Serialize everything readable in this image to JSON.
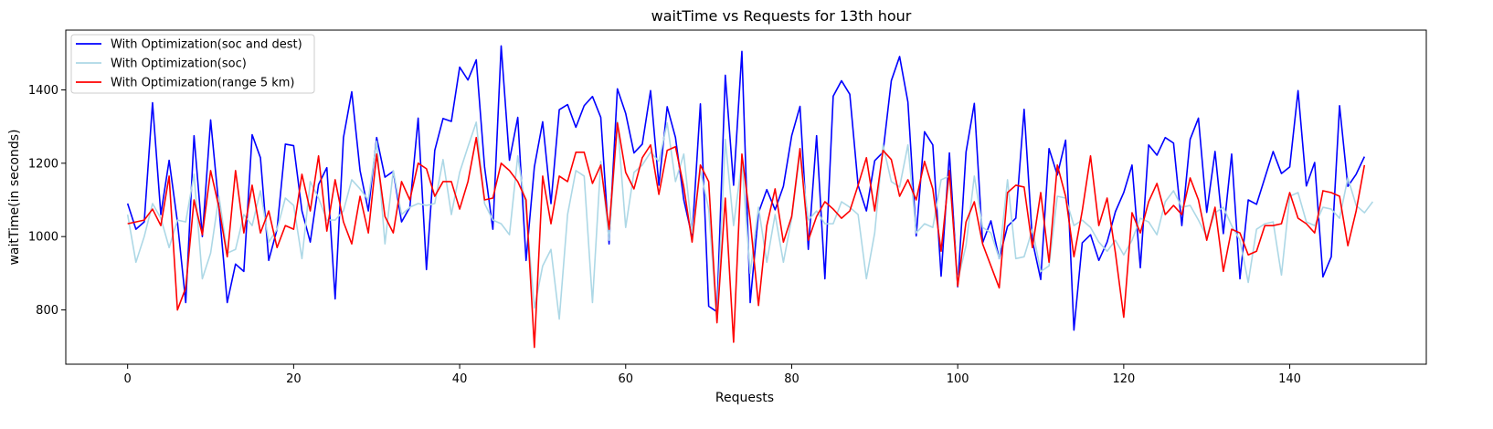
{
  "chart_data": {
    "type": "line",
    "title": "waitTime vs Requests for 13th hour",
    "xlabel": "Requests",
    "ylabel": "waitTime(in seconds)",
    "xlim": [
      -7.45,
      156.45
    ],
    "ylim": [
      652,
      1563
    ],
    "xticks": [
      0,
      20,
      40,
      60,
      80,
      100,
      120,
      140
    ],
    "yticks": [
      800,
      1000,
      1200,
      1400
    ],
    "grid": false,
    "legend_position": "top-left",
    "series": [
      {
        "name": "With Optimization(soc and dest)",
        "color": "#0000ff",
        "values": [
          1090,
          1020,
          1040,
          1365,
          1060,
          1208,
          1040,
          820,
          1275,
          1000,
          1318,
          1080,
          820,
          925,
          905,
          1278,
          1215,
          935,
          1020,
          1252,
          1248,
          1070,
          985,
          1142,
          1188,
          830,
          1270,
          1395,
          1180,
          1070,
          1270,
          1162,
          1178,
          1040,
          1080,
          1323,
          910,
          1235,
          1322,
          1314,
          1462,
          1427,
          1482,
          1190,
          1020,
          1520,
          1208,
          1325,
          935,
          1190,
          1313,
          1090,
          1346,
          1360,
          1298,
          1357,
          1382,
          1325,
          980,
          1403,
          1336,
          1228,
          1252,
          1398,
          1140,
          1354,
          1270,
          1100,
          1000,
          1362,
          810,
          795,
          1440,
          1140,
          1505,
          820,
          1065,
          1128,
          1073,
          1137,
          1275,
          1355,
          965,
          1275,
          885,
          1383,
          1425,
          1388,
          1140,
          1070,
          1207,
          1230,
          1425,
          1491,
          1367,
          1002,
          1286,
          1250,
          892,
          1228,
          863,
          1230,
          1363,
          983,
          1043,
          940,
          1028,
          1050,
          1347,
          988,
          883,
          1240,
          1168,
          1263,
          745,
          983,
          1005,
          935,
          985,
          1068,
          1120,
          1195,
          915,
          1250,
          1222,
          1270,
          1255,
          1030,
          1265,
          1323,
          1066,
          1232,
          1008,
          1225,
          885,
          1100,
          1088,
          1160,
          1232,
          1172,
          1190,
          1398,
          1138,
          1202,
          890,
          945,
          1357,
          1137,
          1170,
          1218
        ]
      },
      {
        "name": "With Optimization(soc)",
        "color": "#add8e6",
        "values": [
          1060,
          930,
          1000,
          1090,
          1050,
          970,
          1045,
          1040,
          1170,
          885,
          955,
          1110,
          955,
          965,
          1060,
          1030,
          1125,
          985,
          1020,
          1105,
          1085,
          940,
          1150,
          1105,
          1045,
          1045,
          1070,
          1155,
          1130,
          1100,
          1260,
          980,
          1180,
          1060,
          1080,
          1090,
          1085,
          1090,
          1210,
          1060,
          1175,
          1245,
          1312,
          1090,
          1045,
          1035,
          1005,
          1220,
          1070,
          805,
          920,
          965,
          775,
          1060,
          1180,
          1165,
          820,
          1205,
          990,
          1315,
          1025,
          1175,
          1195,
          1230,
          1205,
          1310,
          1150,
          1225,
          1010,
          1180,
          1075,
          770,
          1265,
          1030,
          1205,
          900,
          1080,
          930,
          1060,
          930,
          1050,
          1230,
          1045,
          1070,
          1035,
          1035,
          1095,
          1080,
          1060,
          885,
          1010,
          1250,
          1150,
          1135,
          1250,
          1010,
          1035,
          1025,
          1155,
          1165,
          880,
          975,
          1165,
          1025,
          1010,
          940,
          1155,
          940,
          945,
          1020,
          905,
          920,
          1110,
          1105,
          1030,
          1045,
          1025,
          985,
          960,
          990,
          950,
          990,
          1050,
          1040,
          1005,
          1095,
          1125,
          1080,
          1085,
          1045,
          1000,
          1065,
          1080,
          1030,
          990,
          875,
          1020,
          1035,
          1040,
          895,
          1110,
          1120,
          1040,
          1030,
          1080,
          1075,
          1050,
          1160,
          1085,
          1065,
          1095
        ]
      },
      {
        "name": "With Optimization(range 5 km)",
        "color": "#ff0000",
        "values": [
          1035,
          1040,
          1045,
          1075,
          1030,
          1165,
          800,
          860,
          1100,
          1005,
          1180,
          1080,
          945,
          1180,
          1010,
          1140,
          1010,
          1070,
          970,
          1030,
          1020,
          1170,
          1070,
          1220,
          1015,
          1155,
          1040,
          980,
          1110,
          1010,
          1225,
          1055,
          1010,
          1150,
          1100,
          1200,
          1185,
          1110,
          1150,
          1150,
          1075,
          1150,
          1270,
          1100,
          1105,
          1200,
          1180,
          1150,
          1100,
          698,
          1165,
          1035,
          1165,
          1150,
          1230,
          1230,
          1145,
          1195,
          1020,
          1310,
          1175,
          1130,
          1215,
          1250,
          1115,
          1235,
          1245,
          1135,
          985,
          1195,
          1150,
          765,
          1105,
          712,
          1225,
          1045,
          812,
          1030,
          1130,
          985,
          1055,
          1240,
          990,
          1055,
          1095,
          1075,
          1050,
          1070,
          1140,
          1215,
          1070,
          1235,
          1210,
          1110,
          1155,
          1100,
          1205,
          1130,
          960,
          1180,
          865,
          1040,
          1095,
          980,
          920,
          860,
          1120,
          1140,
          1135,
          970,
          1120,
          930,
          1195,
          1110,
          945,
          1070,
          1220,
          1030,
          1105,
          955,
          780,
          1065,
          1010,
          1095,
          1145,
          1060,
          1085,
          1060,
          1160,
          1100,
          990,
          1080,
          905,
          1020,
          1010,
          950,
          960,
          1030,
          1030,
          1035,
          1120,
          1050,
          1035,
          1010,
          1125,
          1120,
          1110,
          975,
          1070,
          1195
        ]
      }
    ]
  }
}
